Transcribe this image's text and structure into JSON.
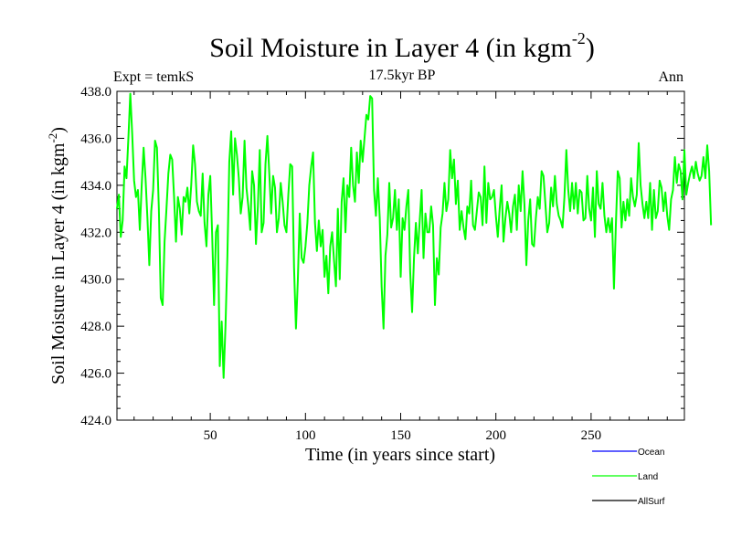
{
  "header": {
    "title_main": "Soil Moisture in Layer 4 (in kgm",
    "title_sup": "-2",
    "title_end": ")",
    "subtitle": "17.5kyr BP",
    "expt": "Expt = temkS",
    "season": "Ann"
  },
  "chart_data": {
    "type": "line",
    "title": "Soil Moisture in Layer 4 (in kgm-2)",
    "xlabel": "Time (in years since start)",
    "ylabel": "Soil Moisture in Layer 4 (in kgm-2)",
    "xlim": [
      1,
      299
    ],
    "ylim": [
      424.0,
      438.0
    ],
    "x_ticks": [
      50,
      100,
      150,
      200,
      250
    ],
    "x_tick_labels": [
      "50",
      "100",
      "150",
      "200",
      "250"
    ],
    "y_ticks": [
      424,
      426,
      428,
      430,
      432,
      434,
      436,
      438
    ],
    "y_tick_labels": [
      "424.0",
      "426.0",
      "428.0",
      "430.0",
      "432.0",
      "434.0",
      "436.0",
      "438.0"
    ],
    "legend": [
      {
        "name": "Ocean",
        "color": "#0000ff"
      },
      {
        "name": "Land",
        "color": "#00ff00"
      },
      {
        "name": "AllSurf",
        "color": "#000000"
      }
    ],
    "legend_placement": "below-right",
    "series": [
      {
        "name": "Land",
        "color": "#00ff00",
        "x_start": 1,
        "x_step": 1,
        "values": [
          433.0,
          433.6,
          431.8,
          432.5,
          434.8,
          434.3,
          436.0,
          437.9,
          436.2,
          434.2,
          433.5,
          433.8,
          432.1,
          434.0,
          435.6,
          434.3,
          432.6,
          430.6,
          432.9,
          433.8,
          435.9,
          435.6,
          433.0,
          429.2,
          428.9,
          431.6,
          433.0,
          434.5,
          435.3,
          435.1,
          433.5,
          431.6,
          433.5,
          433.0,
          431.9,
          433.5,
          433.3,
          433.9,
          432.8,
          434.0,
          435.7,
          434.9,
          433.3,
          432.9,
          432.7,
          434.5,
          432.4,
          431.4,
          433.6,
          434.4,
          431.9,
          428.9,
          432.0,
          432.3,
          426.3,
          428.2,
          425.8,
          428.0,
          431.0,
          435.0,
          436.3,
          433.6,
          436.0,
          435.3,
          434.3,
          432.8,
          433.5,
          435.9,
          433.9,
          433.1,
          432.1,
          434.6,
          434.0,
          431.5,
          433.1,
          435.5,
          432.0,
          432.4,
          434.9,
          436.1,
          434.5,
          432.8,
          434.4,
          433.9,
          432.0,
          432.6,
          434.1,
          433.3,
          432.3,
          432.0,
          433.6,
          434.9,
          434.8,
          430.5,
          427.9,
          430.0,
          432.8,
          430.9,
          430.7,
          431.4,
          432.4,
          434.0,
          434.8,
          435.4,
          432.4,
          431.2,
          432.5,
          431.4,
          432.1,
          430.1,
          431.0,
          429.4,
          431.4,
          432.0,
          430.8,
          429.7,
          433.0,
          430.0,
          433.3,
          434.3,
          432.0,
          434.0,
          433.5,
          435.6,
          434.0,
          433.3,
          435.4,
          434.1,
          435.9,
          435.0,
          436.0,
          437.0,
          436.8,
          437.8,
          437.7,
          433.8,
          432.7,
          434.3,
          432.6,
          429.7,
          427.9,
          431.0,
          431.9,
          434.1,
          432.2,
          432.6,
          433.8,
          432.1,
          433.4,
          430.1,
          432.6,
          432.1,
          433.1,
          433.8,
          430.3,
          428.6,
          430.9,
          432.4,
          431.1,
          432.5,
          433.8,
          430.9,
          432.8,
          432.0,
          432.0,
          433.1,
          432.3,
          428.9,
          430.9,
          430.2,
          432.2,
          432.8,
          434.1,
          432.9,
          433.4,
          435.5,
          434.3,
          435.1,
          433.2,
          434.2,
          432.1,
          432.9,
          432.2,
          431.7,
          433.1,
          432.8,
          434.2,
          432.3,
          432.1,
          432.9,
          433.7,
          433.5,
          432.3,
          434.8,
          432.4,
          434.1,
          433.4,
          433.5,
          433.8,
          432.7,
          431.8,
          433.0,
          434.0,
          431.6,
          432.6,
          433.3,
          432.8,
          432.0,
          433.1,
          433.6,
          432.1,
          434.0,
          432.9,
          434.6,
          433.2,
          430.6,
          432.5,
          433.4,
          431.5,
          431.4,
          432.6,
          433.5,
          433.0,
          434.6,
          434.4,
          433.2,
          432.0,
          432.4,
          433.9,
          433.1,
          434.4,
          433.2,
          432.7,
          432.5,
          432.2,
          433.5,
          435.5,
          433.8,
          432.9,
          434.1,
          433.0,
          434.1,
          432.8,
          433.8,
          433.7,
          432.5,
          432.6,
          434.4,
          433.0,
          432.5,
          433.9,
          431.8,
          434.6,
          433.2,
          433.0,
          434.1,
          432.7,
          432.0,
          432.6,
          432.0,
          432.6,
          429.6,
          432.3,
          434.6,
          434.3,
          432.2,
          433.3,
          432.5,
          433.4,
          432.7,
          434.3,
          433.5,
          433.1,
          433.6,
          435.8,
          434.0,
          433.2,
          432.6,
          433.3,
          432.6,
          434.1,
          432.1,
          433.8,
          432.6,
          432.9,
          434.2,
          433.9,
          432.9,
          433.7,
          432.7,
          432.1,
          433.4,
          433.8,
          435.2,
          434.1,
          434.9,
          434.6,
          433.4,
          435.5,
          433.6,
          434.1,
          434.5,
          434.8,
          434.3,
          435.0,
          434.5,
          434.2,
          434.4,
          435.2,
          434.3,
          435.7,
          434.6,
          432.3
        ]
      }
    ]
  }
}
